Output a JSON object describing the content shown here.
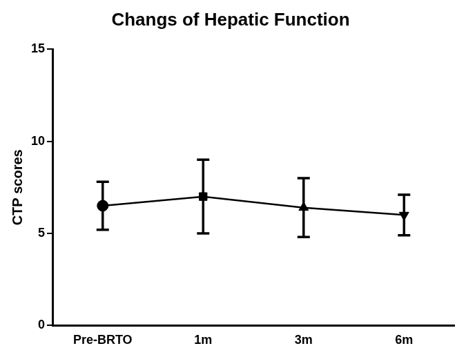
{
  "chart_data": {
    "type": "line",
    "title": "Changs of Hepatic Function",
    "y_label": "CTP scores",
    "categories": [
      "Pre-BRTO",
      "1m",
      "3m",
      "6m"
    ],
    "series": [
      {
        "name": "CTP scores",
        "color": "#000000",
        "values": [
          6.5,
          7.0,
          6.4,
          6.0
        ],
        "errors": [
          1.3,
          2.0,
          1.6,
          1.1
        ],
        "marker": [
          "circle",
          "square",
          "triangle",
          "triangle-down"
        ],
        "line_style": "solid"
      }
    ],
    "ylim": [
      0,
      15
    ],
    "yticks": [
      0,
      5,
      10,
      15
    ],
    "grid": false
  }
}
